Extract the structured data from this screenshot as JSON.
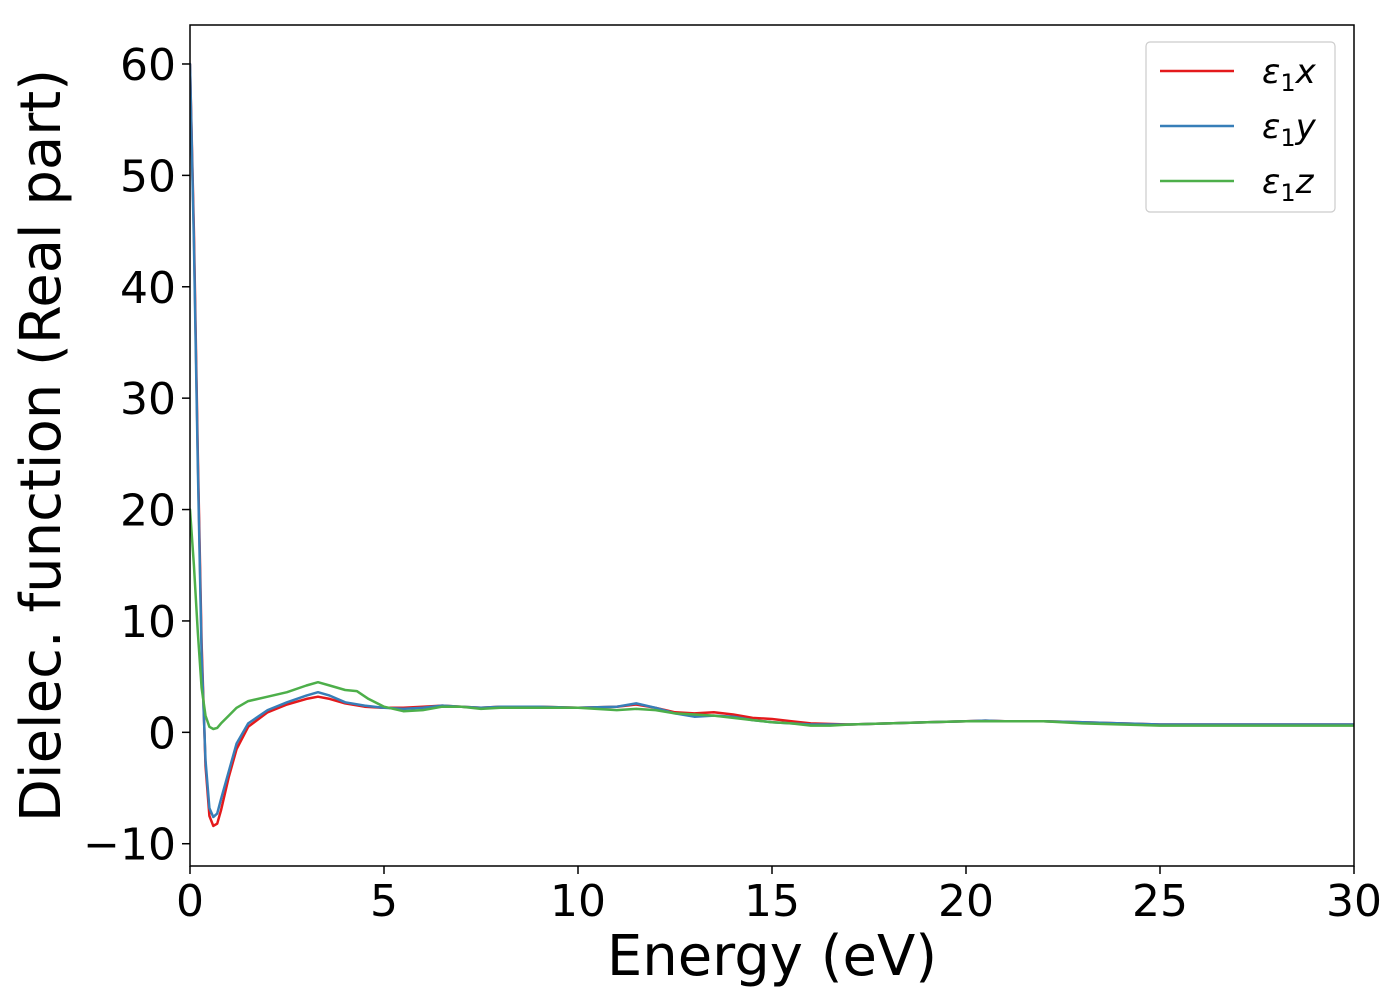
{
  "chart_data": {
    "type": "line",
    "title": "",
    "xlabel": "Energy (eV)",
    "ylabel": "Dielec. function (Real part)",
    "xlim": [
      0,
      30
    ],
    "ylim": [
      -12,
      63.5
    ],
    "xticks": [
      0,
      5,
      10,
      15,
      20,
      25,
      30
    ],
    "xtick_labels": [
      "0",
      "5",
      "10",
      "15",
      "20",
      "25",
      "30"
    ],
    "yticks": [
      -10,
      0,
      10,
      20,
      30,
      40,
      50,
      60
    ],
    "ytick_labels": [
      "−10",
      "0",
      "10",
      "20",
      "30",
      "40",
      "50",
      "60"
    ],
    "grid": false,
    "legend_position": "top-right",
    "series": [
      {
        "name": "ε1x",
        "legend_base": "ε",
        "legend_sub": "1",
        "legend_suffix": "x",
        "color": "#e41a1c",
        "points": [
          [
            0,
            60
          ],
          [
            0.1,
            45
          ],
          [
            0.2,
            25
          ],
          [
            0.3,
            8
          ],
          [
            0.4,
            -3
          ],
          [
            0.5,
            -7.5
          ],
          [
            0.6,
            -8.4
          ],
          [
            0.7,
            -8.2
          ],
          [
            0.8,
            -7
          ],
          [
            1.0,
            -4
          ],
          [
            1.2,
            -1.5
          ],
          [
            1.5,
            0.5
          ],
          [
            2.0,
            1.8
          ],
          [
            2.5,
            2.5
          ],
          [
            3.0,
            3.0
          ],
          [
            3.3,
            3.2
          ],
          [
            3.6,
            3.0
          ],
          [
            4.0,
            2.6
          ],
          [
            4.5,
            2.3
          ],
          [
            5.0,
            2.2
          ],
          [
            5.5,
            2.2
          ],
          [
            6.0,
            2.3
          ],
          [
            6.5,
            2.4
          ],
          [
            7.0,
            2.3
          ],
          [
            7.5,
            2.2
          ],
          [
            8.0,
            2.3
          ],
          [
            9.0,
            2.3
          ],
          [
            10.0,
            2.2
          ],
          [
            11.0,
            2.3
          ],
          [
            11.5,
            2.5
          ],
          [
            12.0,
            2.2
          ],
          [
            12.5,
            1.8
          ],
          [
            13.0,
            1.7
          ],
          [
            13.5,
            1.8
          ],
          [
            14.0,
            1.6
          ],
          [
            14.5,
            1.3
          ],
          [
            15.0,
            1.2
          ],
          [
            15.5,
            1.0
          ],
          [
            16.0,
            0.8
          ],
          [
            17.0,
            0.7
          ],
          [
            18.0,
            0.8
          ],
          [
            19.0,
            0.9
          ],
          [
            20.0,
            1.0
          ],
          [
            20.5,
            1.05
          ],
          [
            21.0,
            1.0
          ],
          [
            22.0,
            1.0
          ],
          [
            23.0,
            0.9
          ],
          [
            24.0,
            0.8
          ],
          [
            25.0,
            0.7
          ],
          [
            26.0,
            0.7
          ],
          [
            27.0,
            0.7
          ],
          [
            28.0,
            0.7
          ],
          [
            29.0,
            0.7
          ],
          [
            30.0,
            0.7
          ]
        ]
      },
      {
        "name": "ε1y",
        "legend_base": "ε",
        "legend_sub": "1",
        "legend_suffix": "y",
        "color": "#377eb8",
        "points": [
          [
            0,
            60
          ],
          [
            0.1,
            44
          ],
          [
            0.2,
            24
          ],
          [
            0.3,
            7
          ],
          [
            0.4,
            -2.5
          ],
          [
            0.5,
            -6.8
          ],
          [
            0.6,
            -7.6
          ],
          [
            0.7,
            -7.3
          ],
          [
            0.8,
            -6
          ],
          [
            1.0,
            -3.5
          ],
          [
            1.2,
            -1
          ],
          [
            1.5,
            0.8
          ],
          [
            2.0,
            2.0
          ],
          [
            2.5,
            2.7
          ],
          [
            3.0,
            3.3
          ],
          [
            3.3,
            3.6
          ],
          [
            3.6,
            3.3
          ],
          [
            4.0,
            2.7
          ],
          [
            4.5,
            2.4
          ],
          [
            5.0,
            2.2
          ],
          [
            5.5,
            2.1
          ],
          [
            6.0,
            2.2
          ],
          [
            6.5,
            2.4
          ],
          [
            7.0,
            2.3
          ],
          [
            7.5,
            2.2
          ],
          [
            8.0,
            2.3
          ],
          [
            9.0,
            2.3
          ],
          [
            10.0,
            2.2
          ],
          [
            11.0,
            2.3
          ],
          [
            11.5,
            2.6
          ],
          [
            12.0,
            2.2
          ],
          [
            12.5,
            1.7
          ],
          [
            13.0,
            1.4
          ],
          [
            13.5,
            1.5
          ],
          [
            14.0,
            1.4
          ],
          [
            14.5,
            1.1
          ],
          [
            15.0,
            0.9
          ],
          [
            15.5,
            0.8
          ],
          [
            16.0,
            0.7
          ],
          [
            17.0,
            0.7
          ],
          [
            18.0,
            0.8
          ],
          [
            19.0,
            0.9
          ],
          [
            20.0,
            1.0
          ],
          [
            20.5,
            1.05
          ],
          [
            21.0,
            1.0
          ],
          [
            22.0,
            1.0
          ],
          [
            23.0,
            0.9
          ],
          [
            24.0,
            0.8
          ],
          [
            25.0,
            0.7
          ],
          [
            26.0,
            0.7
          ],
          [
            27.0,
            0.7
          ],
          [
            28.0,
            0.7
          ],
          [
            29.0,
            0.7
          ],
          [
            30.0,
            0.7
          ]
        ]
      },
      {
        "name": "ε1z",
        "legend_base": "ε",
        "legend_sub": "1",
        "legend_suffix": "z",
        "color": "#4daf4a",
        "points": [
          [
            0,
            20
          ],
          [
            0.1,
            15
          ],
          [
            0.2,
            9
          ],
          [
            0.3,
            4
          ],
          [
            0.4,
            1.5
          ],
          [
            0.5,
            0.5
          ],
          [
            0.6,
            0.3
          ],
          [
            0.7,
            0.4
          ],
          [
            0.8,
            0.8
          ],
          [
            1.0,
            1.5
          ],
          [
            1.2,
            2.2
          ],
          [
            1.5,
            2.8
          ],
          [
            2.0,
            3.2
          ],
          [
            2.5,
            3.6
          ],
          [
            3.0,
            4.2
          ],
          [
            3.3,
            4.5
          ],
          [
            3.6,
            4.2
          ],
          [
            4.0,
            3.8
          ],
          [
            4.3,
            3.7
          ],
          [
            4.6,
            3.0
          ],
          [
            5.0,
            2.3
          ],
          [
            5.5,
            1.9
          ],
          [
            6.0,
            2.0
          ],
          [
            6.5,
            2.3
          ],
          [
            7.0,
            2.3
          ],
          [
            7.5,
            2.1
          ],
          [
            8.0,
            2.2
          ],
          [
            9.0,
            2.2
          ],
          [
            10.0,
            2.2
          ],
          [
            11.0,
            2.0
          ],
          [
            11.5,
            2.1
          ],
          [
            12.0,
            2.0
          ],
          [
            12.5,
            1.7
          ],
          [
            13.0,
            1.6
          ],
          [
            13.5,
            1.5
          ],
          [
            14.0,
            1.3
          ],
          [
            14.5,
            1.1
          ],
          [
            15.0,
            0.9
          ],
          [
            15.5,
            0.8
          ],
          [
            16.0,
            0.6
          ],
          [
            16.5,
            0.6
          ],
          [
            17.0,
            0.7
          ],
          [
            18.0,
            0.8
          ],
          [
            19.0,
            0.9
          ],
          [
            20.0,
            1.0
          ],
          [
            20.5,
            1.0
          ],
          [
            21.0,
            1.0
          ],
          [
            22.0,
            1.0
          ],
          [
            23.0,
            0.8
          ],
          [
            24.0,
            0.7
          ],
          [
            25.0,
            0.6
          ],
          [
            26.0,
            0.6
          ],
          [
            27.0,
            0.6
          ],
          [
            28.0,
            0.6
          ],
          [
            29.0,
            0.6
          ],
          [
            30.0,
            0.6
          ]
        ]
      }
    ]
  }
}
